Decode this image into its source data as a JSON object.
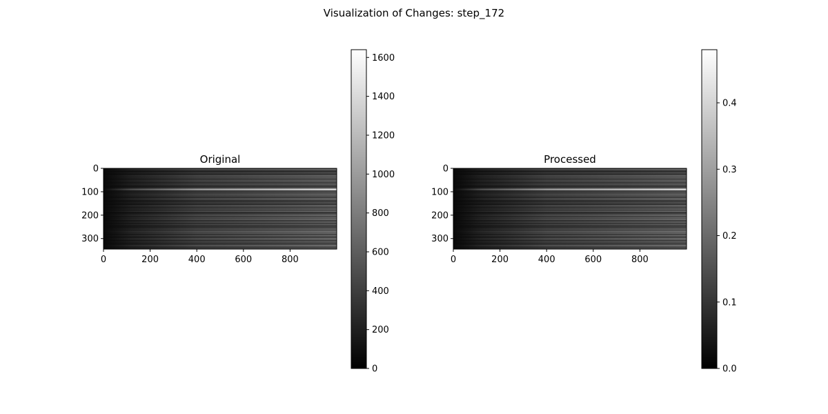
{
  "figure": {
    "title": "Visualization of Changes: step_172"
  },
  "chart_data": [
    {
      "type": "heatmap",
      "title": "Original",
      "colormap": "gray",
      "image_shape": [
        345,
        1000
      ],
      "x_ticks": [
        "0",
        "200",
        "400",
        "600",
        "800"
      ],
      "y_ticks": [
        "0",
        "100",
        "200",
        "300"
      ],
      "xlim": [
        0,
        1000
      ],
      "ylim": [
        345,
        0
      ],
      "colorbar": {
        "range": [
          0,
          1640
        ],
        "ticks": [
          "0",
          "200",
          "400",
          "600",
          "800",
          "1000",
          "1200",
          "1400",
          "1600"
        ]
      },
      "bright_row_y": 88
    },
    {
      "type": "heatmap",
      "title": "Processed",
      "colormap": "gray",
      "image_shape": [
        345,
        1000
      ],
      "x_ticks": [
        "0",
        "200",
        "400",
        "600",
        "800"
      ],
      "y_ticks": [
        "0",
        "100",
        "200",
        "300"
      ],
      "xlim": [
        0,
        1000
      ],
      "ylim": [
        345,
        0
      ],
      "colorbar": {
        "range": [
          0,
          0.48
        ],
        "ticks": [
          "0.0",
          "0.1",
          "0.2",
          "0.3",
          "0.4"
        ]
      },
      "bright_row_y": 88
    }
  ]
}
